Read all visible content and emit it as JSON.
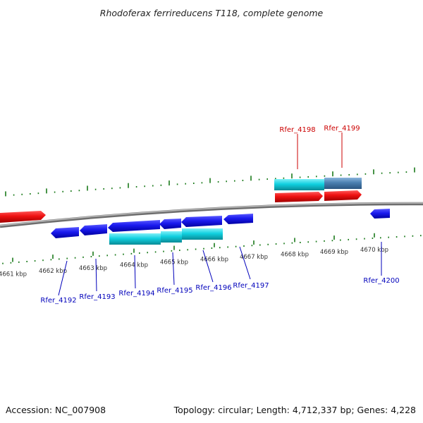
{
  "title": "Rhodoferax ferrireducens T118, complete genome",
  "footer": {
    "accession": "Accession: NC_007908",
    "summary": "Topology: circular; Length: 4,712,337 bp; Genes: 4,228"
  },
  "colors": {
    "backbone": "#8a8a8a",
    "tick": "#1a7a1a",
    "forward_cds": "#ee1111",
    "reverse_cds": "#1a1aee",
    "operon_a": "#10d0e0",
    "operon_b": "#4a7fb0",
    "label_forward": "#cc0000",
    "label_reverse": "#0000bb"
  },
  "ticks": [
    {
      "label": "4661 kbp"
    },
    {
      "label": "4662 kbp"
    },
    {
      "label": "4663 kbp"
    },
    {
      "label": "4664 kbp"
    },
    {
      "label": "4665 kbp"
    },
    {
      "label": "4666 kbp"
    },
    {
      "label": "4667 kbp"
    },
    {
      "label": "4668 kbp"
    },
    {
      "label": "4669 kbp"
    },
    {
      "label": "4670 kbp"
    }
  ],
  "genes": [
    {
      "name": "Rfer_4192",
      "strand": "reverse"
    },
    {
      "name": "Rfer_4193",
      "strand": "reverse"
    },
    {
      "name": "Rfer_4194",
      "strand": "reverse"
    },
    {
      "name": "Rfer_4195",
      "strand": "reverse"
    },
    {
      "name": "Rfer_4196",
      "strand": "reverse"
    },
    {
      "name": "Rfer_4197",
      "strand": "reverse"
    },
    {
      "name": "Rfer_4198",
      "strand": "forward"
    },
    {
      "name": "Rfer_4199",
      "strand": "forward"
    },
    {
      "name": "Rfer_4200",
      "strand": "reverse"
    }
  ]
}
